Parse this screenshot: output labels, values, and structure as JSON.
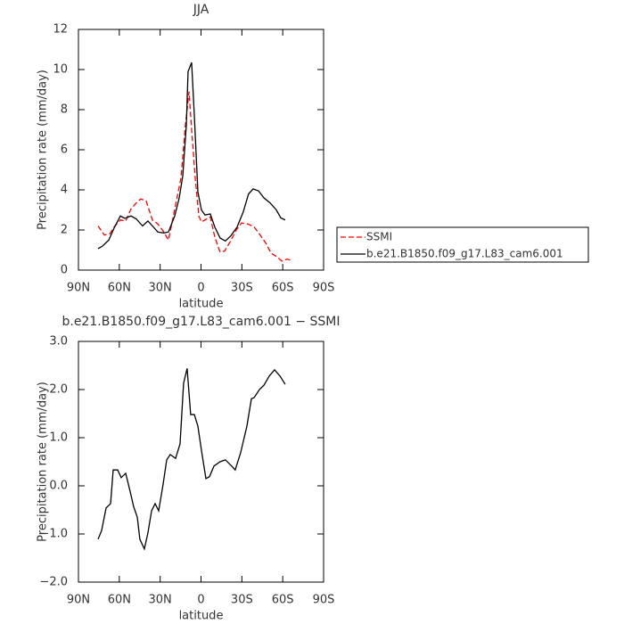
{
  "chart_data": [
    {
      "type": "line",
      "title": "JJA",
      "xlabel": "latitude",
      "ylabel": "Precipitation rate (mm/day)",
      "xlim": [
        90,
        -90
      ],
      "xticks": [
        {
          "value": 90,
          "label": "90N"
        },
        {
          "value": 60,
          "label": "60N"
        },
        {
          "value": 30,
          "label": "30N"
        },
        0,
        {
          "value": -30,
          "label": "30S"
        },
        {
          "value": -60,
          "label": "60S"
        },
        {
          "value": -90,
          "label": "90S"
        }
      ],
      "ylim": [
        0,
        12
      ],
      "yticks": [
        0,
        2,
        4,
        6,
        8,
        10,
        12
      ],
      "legend": "right",
      "series": [
        {
          "name": "SSMI",
          "color": "#ff0000",
          "linestyle": "dashed",
          "x": [
            75.6,
            71,
            67,
            63.8,
            59.2,
            55.3,
            51.4,
            47.5,
            44.2,
            40.3,
            35.7,
            31.7,
            27.8,
            23.9,
            20,
            14.7,
            11.5,
            8.8,
            6.9,
            4.2,
            1.6,
            -0.3,
            -2.9,
            -6.8,
            -10.1,
            -14,
            -17.3,
            -21.3,
            -25.9,
            -29.8,
            -34.4,
            -39,
            -42.9,
            -47.5,
            -51.4,
            -56,
            -59.3,
            -63.2,
            -65.8
          ],
          "values": [
            2.2,
            1.75,
            1.8,
            2.15,
            2.5,
            2.45,
            3.05,
            3.35,
            3.55,
            3.45,
            2.5,
            2.3,
            1.95,
            1.5,
            2.8,
            4.6,
            7.2,
            8.9,
            7,
            4.55,
            2.7,
            2.4,
            2.5,
            2.65,
            1.65,
            0.9,
            0.95,
            1.4,
            2.0,
            2.35,
            2.3,
            2.15,
            1.8,
            1.35,
            0.85,
            0.65,
            0.45,
            0.55,
            0.5
          ]
        },
        {
          "name": "b.e21.B1850.f09_g17.L83_cam6.001",
          "color": "#000000",
          "linestyle": "solid",
          "x": [
            75.6,
            72.3,
            67.7,
            63.8,
            59.2,
            56,
            51.4,
            47.5,
            42.9,
            39,
            35,
            31.7,
            27.2,
            23.9,
            19.3,
            16,
            13.4,
            10.8,
            9.5,
            6.9,
            4.9,
            2.3,
            -0.3,
            -2.9,
            -6.8,
            -10.1,
            -14,
            -17.9,
            -21.8,
            -26.5,
            -31,
            -34.9,
            -38.3,
            -42.2,
            -46.2,
            -50.7,
            -55.3,
            -58.6,
            -61.8
          ],
          "values": [
            1.07,
            1.2,
            1.5,
            2.1,
            2.7,
            2.58,
            2.7,
            2.55,
            2.2,
            2.45,
            2.15,
            1.9,
            1.85,
            1.9,
            2.7,
            3.6,
            4.7,
            7.2,
            9.9,
            10.35,
            7.7,
            3.9,
            3.0,
            2.75,
            2.8,
            2.15,
            1.6,
            1.45,
            1.7,
            2.15,
            2.9,
            3.8,
            4.05,
            3.95,
            3.6,
            3.35,
            3.0,
            2.6,
            2.5
          ]
        }
      ]
    },
    {
      "type": "line",
      "title": "b.e21.B1850.f09_g17.L83_cam6.001 − SSMI",
      "xlabel": "latitude",
      "ylabel": "Precipitation rate (mm/day)",
      "xlim": [
        90,
        -90
      ],
      "xticks": [
        {
          "value": 90,
          "label": "90N"
        },
        {
          "value": 60,
          "label": "60N"
        },
        {
          "value": 30,
          "label": "30N"
        },
        0,
        {
          "value": -30,
          "label": "30S"
        },
        {
          "value": -60,
          "label": "60S"
        },
        {
          "value": -90,
          "label": "90S"
        }
      ],
      "ylim": [
        -2,
        3
      ],
      "yticks": [
        {
          "value": -2,
          "label": "−2.0"
        },
        {
          "value": -1,
          "label": "−1.0"
        },
        {
          "value": 0,
          "label": "0.0"
        },
        {
          "value": 1,
          "label": "1.0"
        },
        {
          "value": 2,
          "label": "2.0"
        },
        {
          "value": 3,
          "label": "3.0"
        }
      ],
      "series": [
        {
          "color": "#000000",
          "linestyle": "solid",
          "x": [
            75.6,
            73,
            69.7,
            66.4,
            64.5,
            61.2,
            58.6,
            55.3,
            52.1,
            49.5,
            46.8,
            44.9,
            41.6,
            39,
            36.3,
            33.7,
            31.1,
            27.8,
            25.2,
            22.6,
            18.7,
            15.4,
            12.8,
            10.2,
            7.6,
            4.9,
            2.3,
            -0.3,
            -3.6,
            -6.2,
            -9.5,
            -14,
            -17.9,
            -23.2,
            -25.1,
            -29.1,
            -33.7,
            -37,
            -38.9,
            -42.9,
            -46.2,
            -50.1,
            -54,
            -58,
            -61.8
          ],
          "values": [
            -1.11,
            -0.93,
            -0.46,
            -0.37,
            0.33,
            0.33,
            0.17,
            0.26,
            -0.11,
            -0.43,
            -0.65,
            -1.11,
            -1.31,
            -0.98,
            -0.52,
            -0.37,
            -0.52,
            0.04,
            0.54,
            0.65,
            0.57,
            0.87,
            2.13,
            2.44,
            1.48,
            1.48,
            1.24,
            0.74,
            0.15,
            0.19,
            0.41,
            0.5,
            0.54,
            0.39,
            0.33,
            0.69,
            1.24,
            1.81,
            1.83,
            2.0,
            2.09,
            2.28,
            2.41,
            2.28,
            2.11
          ]
        }
      ]
    }
  ]
}
